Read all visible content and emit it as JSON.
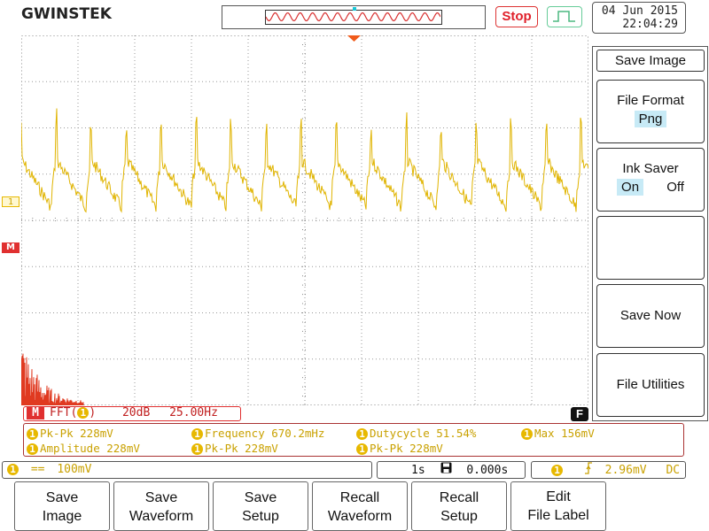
{
  "brand": "GWINSTEK",
  "header": {
    "run_state": "Stop",
    "date": "04 Jun 2015",
    "time": "22:04:29"
  },
  "side_menu": {
    "title": "Save Image",
    "file_format": {
      "label": "File Format",
      "value": "Png"
    },
    "ink_saver": {
      "label": "Ink Saver",
      "on": "On",
      "off": "Off"
    },
    "save_now": "Save Now",
    "file_utilities": "File Utilities"
  },
  "channel_marker": "1",
  "math_marker": "M",
  "fft": {
    "badge": "M",
    "label_prefix": "FFT(",
    "label_suffix": ")",
    "scale": "20dB",
    "span": "25.00Hz"
  },
  "f_badge": "F",
  "measurements": [
    {
      "label": "Pk-Pk 228mV"
    },
    {
      "label": "Frequency 670.2mHz"
    },
    {
      "label": "Dutycycle 51.54%"
    },
    {
      "label": "Max 156mV"
    },
    {
      "label": "Amplitude 228mV"
    },
    {
      "label": "Pk-Pk 228mV"
    },
    {
      "label": "Pk-Pk 228mV"
    }
  ],
  "status": {
    "ch1_coupling": "==",
    "ch1_scale": "100mV",
    "timebase": "1s",
    "position": "0.000s",
    "trigger_level": "2.96mV",
    "trigger_coupling": "DC"
  },
  "bottom_buttons": [
    {
      "line1": "Save",
      "line2": "Image"
    },
    {
      "line1": "Save",
      "line2": "Waveform"
    },
    {
      "line1": "Save",
      "line2": "Setup"
    },
    {
      "line1": "Recall",
      "line2": "Waveform"
    },
    {
      "line1": "Recall",
      "line2": "Setup"
    },
    {
      "line1": "Edit",
      "line2": "File Label"
    }
  ],
  "colors": {
    "ch1": "#e7b800",
    "math": "#e03030",
    "selected": "#c7eaf6"
  },
  "icons": [
    "trigger-rising-edge-icon",
    "floppy-disk-icon",
    "trigger-mode-icon"
  ]
}
